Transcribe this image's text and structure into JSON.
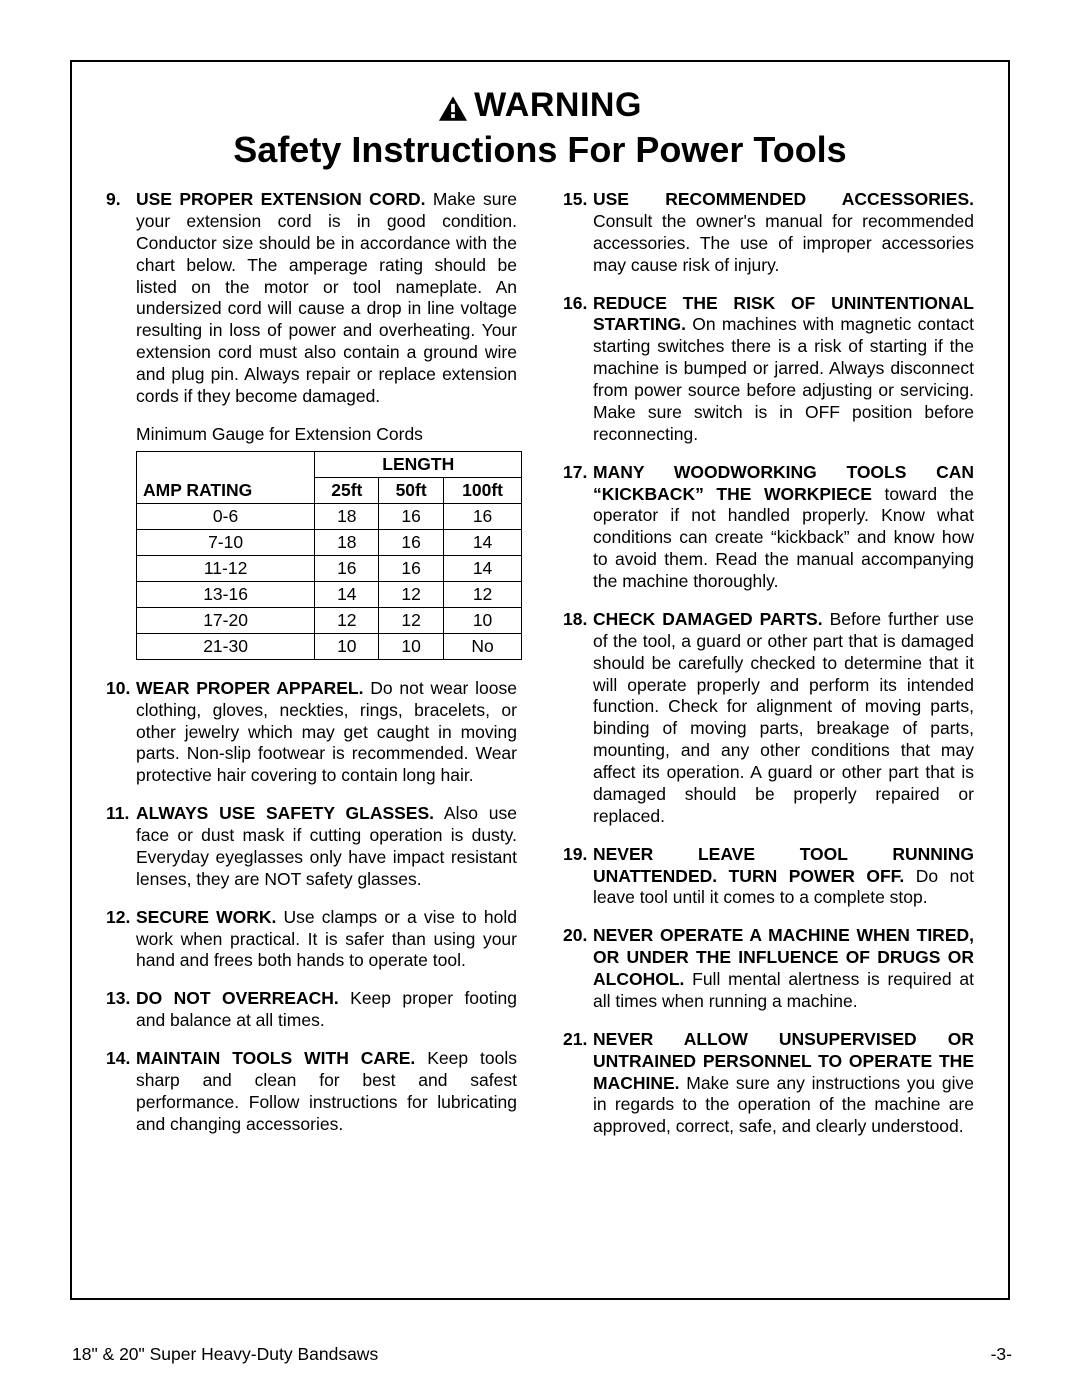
{
  "colors": {
    "text": "#000000",
    "background": "#ffffff",
    "border": "#000000",
    "table_border": "#000000"
  },
  "typography": {
    "body_family": "Arial, Helvetica, sans-serif",
    "body_size_pt": 13,
    "heading_warn_size_pt": 26,
    "heading_sub_size_pt": 27
  },
  "heading": {
    "warning": "WARNING",
    "subtitle": "Safety Instructions For Power Tools"
  },
  "table": {
    "caption": "Minimum Gauge for Extension Cords",
    "length_header": "LENGTH",
    "amp_header": "AMP RATING",
    "length_columns": [
      "25ft",
      "50ft",
      "100ft"
    ],
    "rows": [
      {
        "amp": "0-6",
        "vals": [
          "18",
          "16",
          "16"
        ]
      },
      {
        "amp": "7-10",
        "vals": [
          "18",
          "16",
          "14"
        ]
      },
      {
        "amp": "11-12",
        "vals": [
          "16",
          "16",
          "14"
        ]
      },
      {
        "amp": "13-16",
        "vals": [
          "14",
          "12",
          "12"
        ]
      },
      {
        "amp": "17-20",
        "vals": [
          "12",
          "12",
          "10"
        ]
      },
      {
        "amp": "21-30",
        "vals": [
          "10",
          "10",
          "No"
        ]
      }
    ]
  },
  "instructions_left": [
    {
      "num": "9.",
      "title": "USE PROPER EXTENSION CORD.",
      "body": " Make sure your extension cord is in good condition. Conductor size should be in accordance with the chart below. The amperage rating should be listed on the motor or tool nameplate. An undersized cord will cause a drop in line voltage resulting in loss of power and overheating. Your extension cord must also contain a ground wire and plug pin. Always repair or replace extension cords if they become damaged."
    }
  ],
  "instructions_left2": [
    {
      "num": "10.",
      "title": "WEAR PROPER APPAREL.",
      "body": " Do not wear loose clothing, gloves, neckties, rings, bracelets, or other jewelry which may get caught in moving parts. Non-slip footwear is recommended. Wear protective hair covering to contain long hair."
    },
    {
      "num": "11.",
      "title": "ALWAYS USE SAFETY GLASSES.",
      "body": " Also use face or dust mask if cutting operation is dusty. Everyday eyeglasses only have impact resistant lenses, they are NOT safety glasses."
    },
    {
      "num": "12.",
      "title": "SECURE WORK.",
      "body": " Use clamps or a vise to hold work when practical. It is safer than using your hand and frees both hands to operate tool."
    },
    {
      "num": "13.",
      "title": "DO NOT OVERREACH.",
      "body": " Keep proper footing and balance at all times."
    },
    {
      "num": "14.",
      "title": "MAINTAIN TOOLS WITH CARE.",
      "body": " Keep tools sharp and clean for best and safest performance. Follow instructions for lubricating and changing accessories."
    }
  ],
  "instructions_right": [
    {
      "num": "15.",
      "title": "USE RECOMMENDED ACCESSORIES.",
      "body": " Consult the owner's manual for recommended accessories. The use of improper accessories may cause risk of injury."
    },
    {
      "num": "16.",
      "title": "REDUCE THE RISK OF UNINTENTIONAL STARTING.",
      "body": " On machines with magnetic contact starting switches there is a risk of starting if the machine is bumped or jarred. Always disconnect from power source before adjusting or servicing. Make sure switch is in OFF position before reconnecting."
    },
    {
      "num": "17.",
      "title": "MANY WOODWORKING TOOLS CAN “KICKBACK” THE WORKPIECE",
      "body": " toward the operator if not handled properly. Know what conditions can create “kickback” and know how to avoid them. Read the manual accompanying the machine thoroughly."
    },
    {
      "num": "18.",
      "title": "CHECK DAMAGED PARTS.",
      "body": " Before further use of the tool, a guard or other part that is damaged should be carefully checked to determine that it will operate properly and perform its intended function. Check for alignment of moving parts, binding of moving parts, breakage of parts, mounting, and any other conditions that may affect its operation. A guard or other part that is damaged should be properly repaired or replaced."
    },
    {
      "num": "19.",
      "title": "NEVER LEAVE TOOL RUNNING UNATTENDED. TURN POWER OFF.",
      "body": " Do not leave tool until it comes to a complete stop."
    },
    {
      "num": "20.",
      "title": "NEVER OPERATE A MACHINE WHEN TIRED, OR UNDER THE INFLUENCE OF DRUGS OR ALCOHOL.",
      "body": " Full mental alertness is required at all times when running a machine."
    },
    {
      "num": "21.",
      "title": "NEVER ALLOW UNSUPERVISED OR UNTRAINED PERSONNEL TO OPERATE THE MACHINE.",
      "body": " Make sure any instructions you give in regards to the operation of the machine are approved, correct, safe, and clearly understood."
    }
  ],
  "footer": {
    "left": "18\" & 20\" Super Heavy-Duty Bandsaws",
    "right": "-3-"
  }
}
